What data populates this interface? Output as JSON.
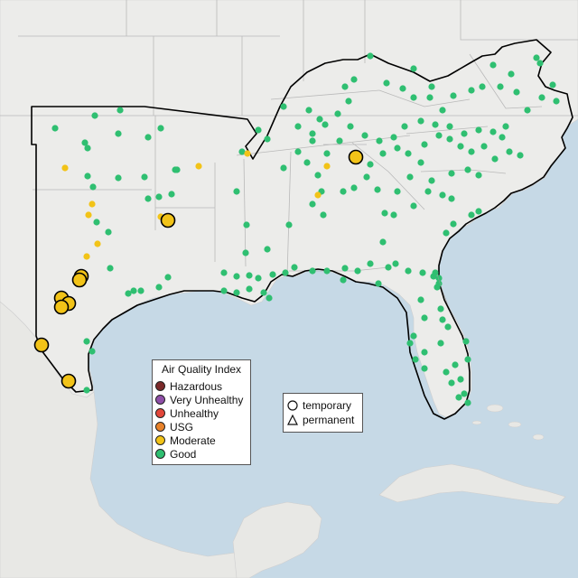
{
  "legend": {
    "title": "Air Quality Index",
    "categories": [
      {
        "label": "Hazardous",
        "color": "#7b2a2a"
      },
      {
        "label": "Very Unhealthy",
        "color": "#8f4fa8"
      },
      {
        "label": "Unhealthy",
        "color": "#e2473a"
      },
      {
        "label": "USG",
        "color": "#e8822a"
      },
      {
        "label": "Moderate",
        "color": "#f2c318"
      },
      {
        "label": "Good",
        "color": "#2fbf71"
      }
    ]
  },
  "monitor_types": [
    {
      "label": "temporary",
      "symbol": "circle"
    },
    {
      "label": "permanent",
      "symbol": "triangle"
    }
  ]
}
